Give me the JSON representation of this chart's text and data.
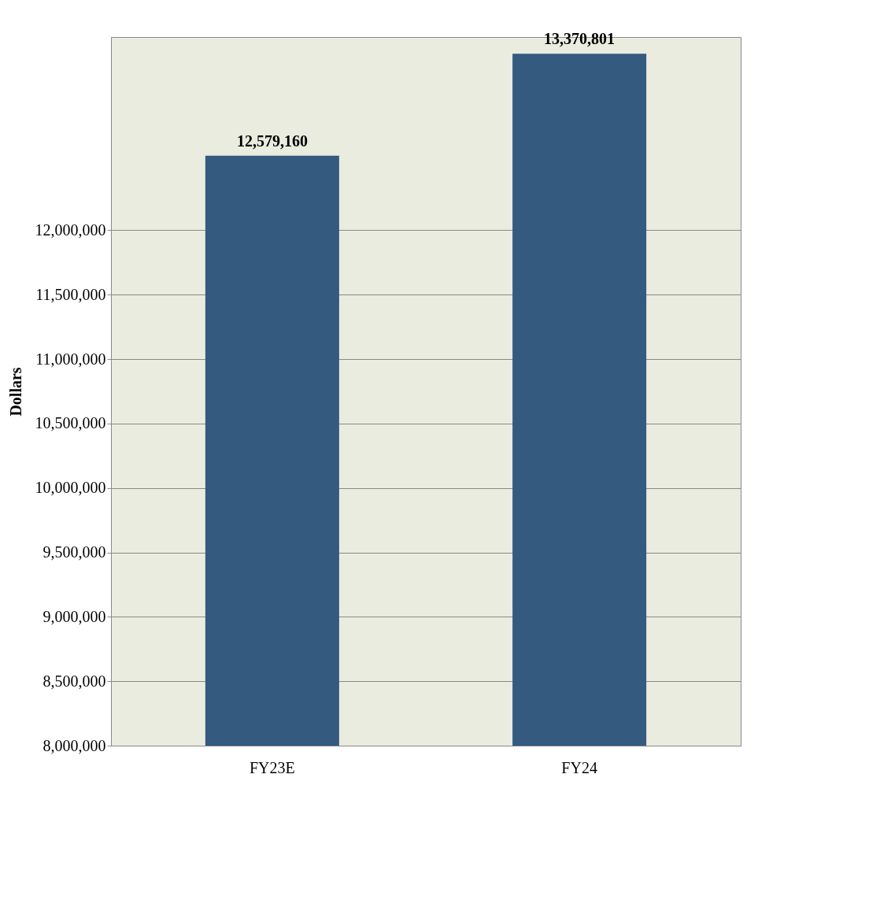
{
  "chart_data": {
    "type": "bar",
    "ylabel": "Dollars",
    "categories": [
      "FY23E",
      "FY24"
    ],
    "values": [
      12579160,
      13370801
    ],
    "value_labels": [
      "12,579,160",
      "13,370,801"
    ],
    "color": "#345a80",
    "ylim": [
      8000000,
      13500000
    ],
    "yticks": [
      {
        "value": 8000000,
        "label": "8,000,000"
      },
      {
        "value": 8500000,
        "label": "8,500,000"
      },
      {
        "value": 9000000,
        "label": "9,000,000"
      },
      {
        "value": 9500000,
        "label": "9,500,000"
      },
      {
        "value": 10000000,
        "label": "10,000,000"
      },
      {
        "value": 10500000,
        "label": "10,500,000"
      },
      {
        "value": 11000000,
        "label": "11,000,000"
      },
      {
        "value": 11500000,
        "label": "11,500,000"
      },
      {
        "value": 12000000,
        "label": "12,000,000"
      }
    ],
    "grid": "y"
  }
}
